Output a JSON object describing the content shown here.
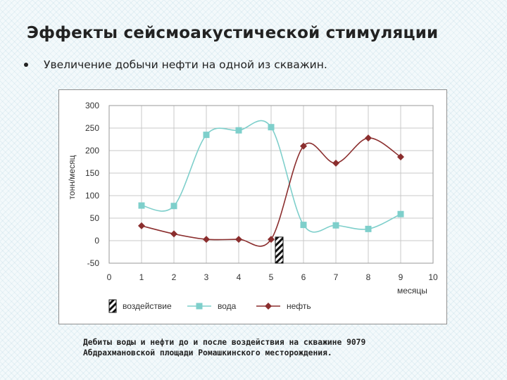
{
  "slide": {
    "title": "Эффекты сейсмоакустической стимуляции",
    "bullet": "Увеличение добычи нефти на одной из скважин.",
    "caption_lines": [
      "Дебиты воды и нефти до и после воздействия на скважине 9079",
      "Абдрахмановской площади Ромашкинского месторождения."
    ]
  },
  "colors": {
    "water": "#7ecfcb",
    "oil": "#8b2e2e",
    "grid": "#c8c8c8",
    "axis": "#444444"
  },
  "chart_data": {
    "type": "line",
    "xlabel": "месяцы",
    "ylabel": "тонн/месяц",
    "xlim": [
      0,
      10
    ],
    "ylim": [
      -50,
      300
    ],
    "x_ticks": [
      "0",
      "1",
      "2",
      "3",
      "4",
      "5",
      "6",
      "7",
      "8",
      "9",
      "10"
    ],
    "y_ticks": [
      "300",
      "250",
      "200",
      "150",
      "100",
      "50",
      "0",
      "-50"
    ],
    "grid": true,
    "smooth": true,
    "legend_position": "bottom",
    "series": [
      {
        "name": "вода",
        "marker": "square",
        "color": "#7ecfcb",
        "x": [
          1,
          2,
          3,
          4,
          5,
          6,
          7,
          8,
          9
        ],
        "y": [
          78,
          77,
          235,
          245,
          252,
          35,
          34,
          26,
          59
        ]
      },
      {
        "name": "нефть",
        "marker": "diamond",
        "color": "#8b2e2e",
        "x": [
          1,
          2,
          3,
          4,
          5,
          6,
          7,
          8,
          9
        ],
        "y": [
          33,
          15,
          3,
          3,
          3,
          210,
          172,
          228,
          186
        ]
      }
    ],
    "intervention": {
      "name": "воздействие",
      "x": 5.25,
      "y_range": [
        -50,
        8
      ]
    }
  }
}
